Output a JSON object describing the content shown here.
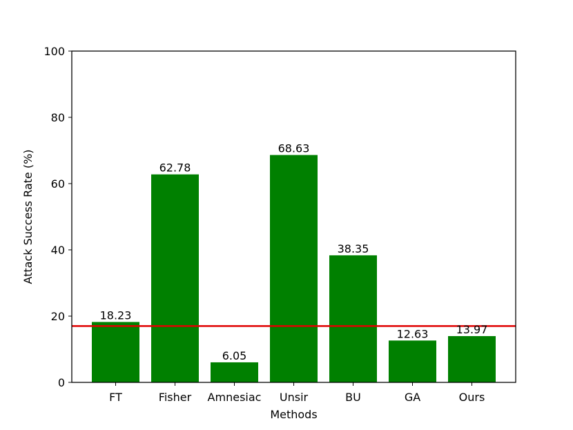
{
  "chart_data": {
    "type": "bar",
    "title": "",
    "xlabel": "Methods",
    "ylabel": "Attack Success Rate (%)",
    "categories": [
      "FT",
      "Fisher",
      "Amnesiac",
      "Unsir",
      "BU",
      "GA",
      "Ours"
    ],
    "values": [
      18.23,
      62.78,
      6.05,
      68.63,
      38.35,
      12.63,
      13.97
    ],
    "value_labels": [
      "18.23",
      "62.78",
      "6.05",
      "68.63",
      "38.35",
      "12.63",
      "13.97"
    ],
    "ylim": [
      0,
      100
    ],
    "yticks": [
      0,
      20,
      40,
      60,
      80,
      100
    ],
    "grid": false,
    "legend": "none",
    "bar_color": "#008000",
    "reference_line": {
      "y": 17,
      "color": "#e00000"
    }
  }
}
